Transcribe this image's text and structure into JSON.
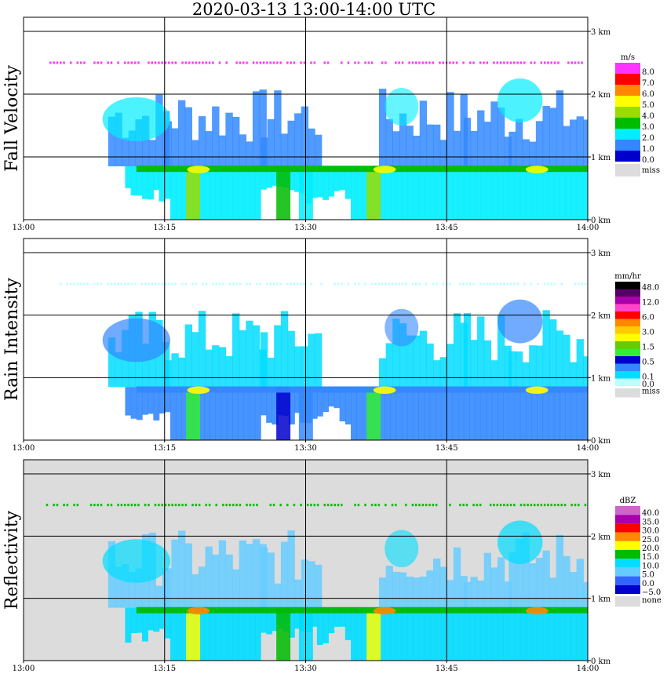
{
  "title": "2020-03-13  13:00-14:00 UTC",
  "time_ticks": [
    "13:00",
    "13:15",
    "13:30",
    "13:45",
    "14:00"
  ],
  "height_ticks": [
    "0 km",
    "1 km",
    "2 km",
    "3 km"
  ],
  "colors": {
    "missing": "#dcdcdc",
    "grid": "#000000"
  },
  "chart_data": [
    {
      "type": "heatmap",
      "ylabel": "Fall Velocity",
      "x_range": [
        "13:00",
        "14:00"
      ],
      "ylim_km": [
        0,
        3
      ],
      "legend_unit": "m/s",
      "legend": [
        {
          "label": "8.0",
          "color": "#ff33ff"
        },
        {
          "label": "7.0",
          "color": "#ff0000"
        },
        {
          "label": "6.0",
          "color": "#ff8800"
        },
        {
          "label": "5.0",
          "color": "#ffff00"
        },
        {
          "label": "4.0",
          "color": "#99dd00"
        },
        {
          "label": "3.0",
          "color": "#00bb00"
        },
        {
          "label": "2.0",
          "color": "#00eeff"
        },
        {
          "label": "1.0",
          "color": "#3388ff"
        },
        {
          "label": "0.0",
          "color": "#0000cc"
        },
        {
          "label": "miss",
          "color": "#dcdcdc"
        }
      ]
    },
    {
      "type": "heatmap",
      "ylabel": "Rain Intensity",
      "x_range": [
        "13:00",
        "14:00"
      ],
      "ylim_km": [
        0,
        3
      ],
      "legend_unit": "mm/hr",
      "legend": [
        {
          "label": "48.0",
          "color": "#000000"
        },
        {
          "label": "",
          "color": "#550066"
        },
        {
          "label": "12.0",
          "color": "#aa00aa"
        },
        {
          "label": "",
          "color": "#ff44cc"
        },
        {
          "label": "6.0",
          "color": "#ff0000"
        },
        {
          "label": "",
          "color": "#ff8800"
        },
        {
          "label": "3.0",
          "color": "#ffcc00"
        },
        {
          "label": "",
          "color": "#ffff00"
        },
        {
          "label": "1.5",
          "color": "#66cc00"
        },
        {
          "label": "",
          "color": "#33ee33"
        },
        {
          "label": "0.5",
          "color": "#0000cc"
        },
        {
          "label": "",
          "color": "#3388ff"
        },
        {
          "label": "0.1",
          "color": "#00ddff"
        },
        {
          "label": "0.0",
          "color": "#bbffff"
        },
        {
          "label": "miss",
          "color": "#dcdcdc"
        }
      ]
    },
    {
      "type": "heatmap",
      "ylabel": "Reflectivity",
      "x_range": [
        "13:00",
        "14:00"
      ],
      "ylim_km": [
        0,
        3
      ],
      "legend_unit": "dBZ",
      "legend": [
        {
          "label": "40.0",
          "color": "#cc66cc"
        },
        {
          "label": "35.0",
          "color": "#aa00aa"
        },
        {
          "label": "30.0",
          "color": "#ff0000"
        },
        {
          "label": "25.0",
          "color": "#ff8800"
        },
        {
          "label": "20.0",
          "color": "#ffff00"
        },
        {
          "label": "15.0",
          "color": "#00bb00"
        },
        {
          "label": "10.0",
          "color": "#00ddff"
        },
        {
          "label": "5.0",
          "color": "#66ccff"
        },
        {
          "label": "0.0",
          "color": "#3366ff"
        },
        {
          "label": "−5.0",
          "color": "#0000cc"
        },
        {
          "label": "none",
          "color": "#dcdcdc"
        }
      ]
    }
  ]
}
